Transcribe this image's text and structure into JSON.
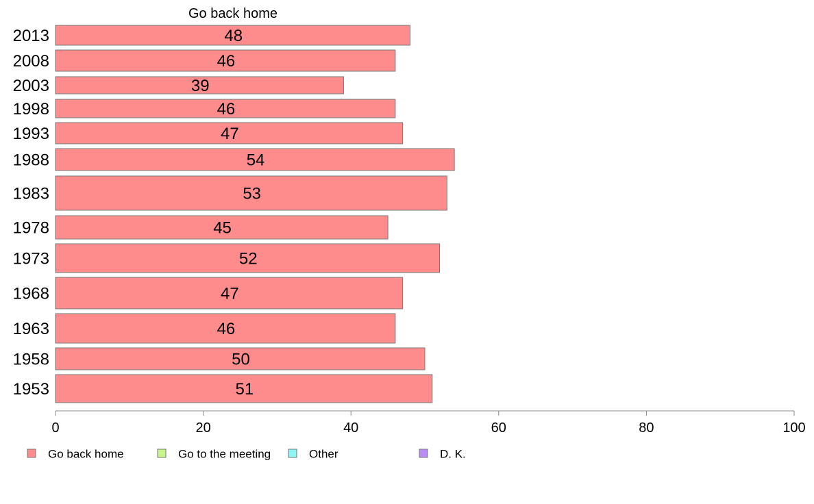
{
  "chart_data": {
    "type": "bar",
    "orientation": "horizontal",
    "series_title": "Go back home",
    "categories": [
      "2013",
      "2008",
      "2003",
      "1998",
      "1993",
      "1988",
      "1983",
      "1978",
      "1973",
      "1968",
      "1963",
      "1958",
      "1953"
    ],
    "series": [
      {
        "name": "Go back home",
        "color": "#ff8c8c",
        "values": [
          48,
          46,
          39,
          46,
          47,
          54,
          53,
          45,
          52,
          47,
          46,
          50,
          51
        ],
        "labels": [
          "48",
          "46",
          "39",
          "46",
          "47",
          "54",
          "53",
          "45",
          "52",
          "47",
          "46",
          "50",
          "51"
        ]
      }
    ],
    "xlim": [
      0,
      100
    ],
    "xticks": [
      "0",
      "20",
      "40",
      "60",
      "80",
      "100"
    ],
    "grid": false,
    "legend": {
      "placement": "bottom-left",
      "items": [
        {
          "name": "Go back home",
          "color": "#ff8c8c"
        },
        {
          "name": "Go to the meeting",
          "color": "#c6f58e"
        },
        {
          "name": "Other",
          "color": "#8cf5f5"
        },
        {
          "name": "D. K.",
          "color": "#b98cf5"
        }
      ]
    }
  }
}
